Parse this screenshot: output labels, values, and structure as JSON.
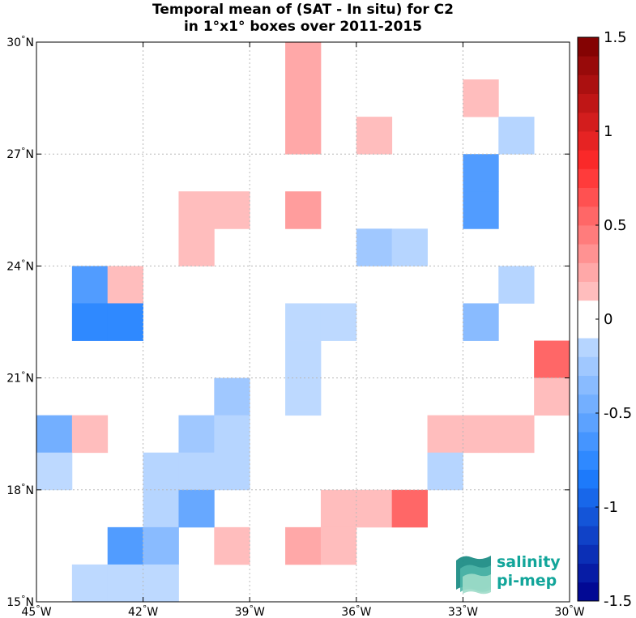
{
  "chart_data": {
    "type": "heatmap",
    "title": [
      "Temporal mean of (SAT - In situ) for C2",
      "in 1°x1° boxes over 2011-2015"
    ],
    "x_range": [
      -45,
      -30
    ],
    "y_range": [
      15,
      30
    ],
    "x_ticks": [
      -45,
      -42,
      -39,
      -36,
      -33,
      -30
    ],
    "x_tick_labels": [
      "45°W",
      "42°W",
      "39°W",
      "36°W",
      "33°W",
      "30°W"
    ],
    "y_ticks": [
      15,
      18,
      21,
      24,
      27,
      30
    ],
    "y_tick_labels": [
      "15°N",
      "18°N",
      "21°N",
      "24°N",
      "27°N",
      "30°N"
    ],
    "grid": true,
    "cell_size_deg": 1,
    "cells": [
      {
        "lon": -38,
        "lat": 29,
        "value": 0.25
      },
      {
        "lon": -38,
        "lat": 28,
        "value": 0.25
      },
      {
        "lon": -38,
        "lat": 27,
        "value": 0.25
      },
      {
        "lon": -33,
        "lat": 28,
        "value": 0.15
      },
      {
        "lon": -36,
        "lat": 27,
        "value": 0.15
      },
      {
        "lon": -32,
        "lat": 27,
        "value": -0.15
      },
      {
        "lon": -33,
        "lat": 26,
        "value": -0.6
      },
      {
        "lon": -33,
        "lat": 25,
        "value": -0.6
      },
      {
        "lon": -41,
        "lat": 25,
        "value": 0.15
      },
      {
        "lon": -40,
        "lat": 25,
        "value": 0.15
      },
      {
        "lon": -41,
        "lat": 24,
        "value": 0.15
      },
      {
        "lon": -38,
        "lat": 25,
        "value": 0.3
      },
      {
        "lon": -36,
        "lat": 24,
        "value": -0.25
      },
      {
        "lon": -35,
        "lat": 24,
        "value": -0.15
      },
      {
        "lon": -44,
        "lat": 23,
        "value": -0.6
      },
      {
        "lon": -43,
        "lat": 23,
        "value": 0.15
      },
      {
        "lon": -44,
        "lat": 22,
        "value": -0.75
      },
      {
        "lon": -43,
        "lat": 22,
        "value": -0.75
      },
      {
        "lon": -32,
        "lat": 23,
        "value": -0.15
      },
      {
        "lon": -38,
        "lat": 22,
        "value": -0.12
      },
      {
        "lon": -37,
        "lat": 22,
        "value": -0.12
      },
      {
        "lon": -38,
        "lat": 21,
        "value": -0.12
      },
      {
        "lon": -38,
        "lat": 20,
        "value": -0.12
      },
      {
        "lon": -33,
        "lat": 22,
        "value": -0.35
      },
      {
        "lon": -31,
        "lat": 21,
        "value": 0.55
      },
      {
        "lon": -31,
        "lat": 20,
        "value": 0.15
      },
      {
        "lon": -40,
        "lat": 20,
        "value": -0.25
      },
      {
        "lon": -45,
        "lat": 19,
        "value": -0.45
      },
      {
        "lon": -44,
        "lat": 19,
        "value": 0.15
      },
      {
        "lon": -41,
        "lat": 19,
        "value": -0.25
      },
      {
        "lon": -40,
        "lat": 19,
        "value": -0.15
      },
      {
        "lon": -34,
        "lat": 19,
        "value": 0.15
      },
      {
        "lon": -33,
        "lat": 19,
        "value": 0.15
      },
      {
        "lon": -32,
        "lat": 19,
        "value": 0.15
      },
      {
        "lon": -45,
        "lat": 18,
        "value": -0.12
      },
      {
        "lon": -42,
        "lat": 18,
        "value": -0.15
      },
      {
        "lon": -41,
        "lat": 18,
        "value": -0.15
      },
      {
        "lon": -40,
        "lat": 18,
        "value": -0.15
      },
      {
        "lon": -34,
        "lat": 18,
        "value": -0.15
      },
      {
        "lon": -42,
        "lat": 17,
        "value": -0.15
      },
      {
        "lon": -41,
        "lat": 17,
        "value": -0.5
      },
      {
        "lon": -37,
        "lat": 17,
        "value": 0.15
      },
      {
        "lon": -36,
        "lat": 17,
        "value": 0.15
      },
      {
        "lon": -35,
        "lat": 17,
        "value": 0.55
      },
      {
        "lon": -43,
        "lat": 16,
        "value": -0.6
      },
      {
        "lon": -42,
        "lat": 16,
        "value": -0.35
      },
      {
        "lon": -40,
        "lat": 16,
        "value": 0.15
      },
      {
        "lon": -38,
        "lat": 16,
        "value": 0.25
      },
      {
        "lon": -37,
        "lat": 16,
        "value": 0.15
      },
      {
        "lon": -44,
        "lat": 15,
        "value": -0.12
      },
      {
        "lon": -43,
        "lat": 15,
        "value": -0.12
      },
      {
        "lon": -42,
        "lat": 15,
        "value": -0.12
      }
    ],
    "colorbar": {
      "range": [
        -1.5,
        1.5
      ],
      "step": 0.1,
      "ticks": [
        1.5,
        1,
        0.5,
        0,
        -0.5,
        -1,
        -1.5
      ],
      "tick_labels": [
        "1.5",
        "1",
        "0.5",
        "0",
        "-0.5",
        "-1",
        "-1.5"
      ],
      "colors": {
        "negative_max": "#00008b",
        "negative_mid": "#1e7fff",
        "negative_light": "#d8e8ff",
        "zero": "#ffffff",
        "positive_light": "#ffdede",
        "positive_mid": "#ff2b2b",
        "positive_max": "#7a0000"
      }
    }
  },
  "logo": {
    "line1": "salinity",
    "line2": "pi-mep",
    "color": "#12a59a"
  }
}
